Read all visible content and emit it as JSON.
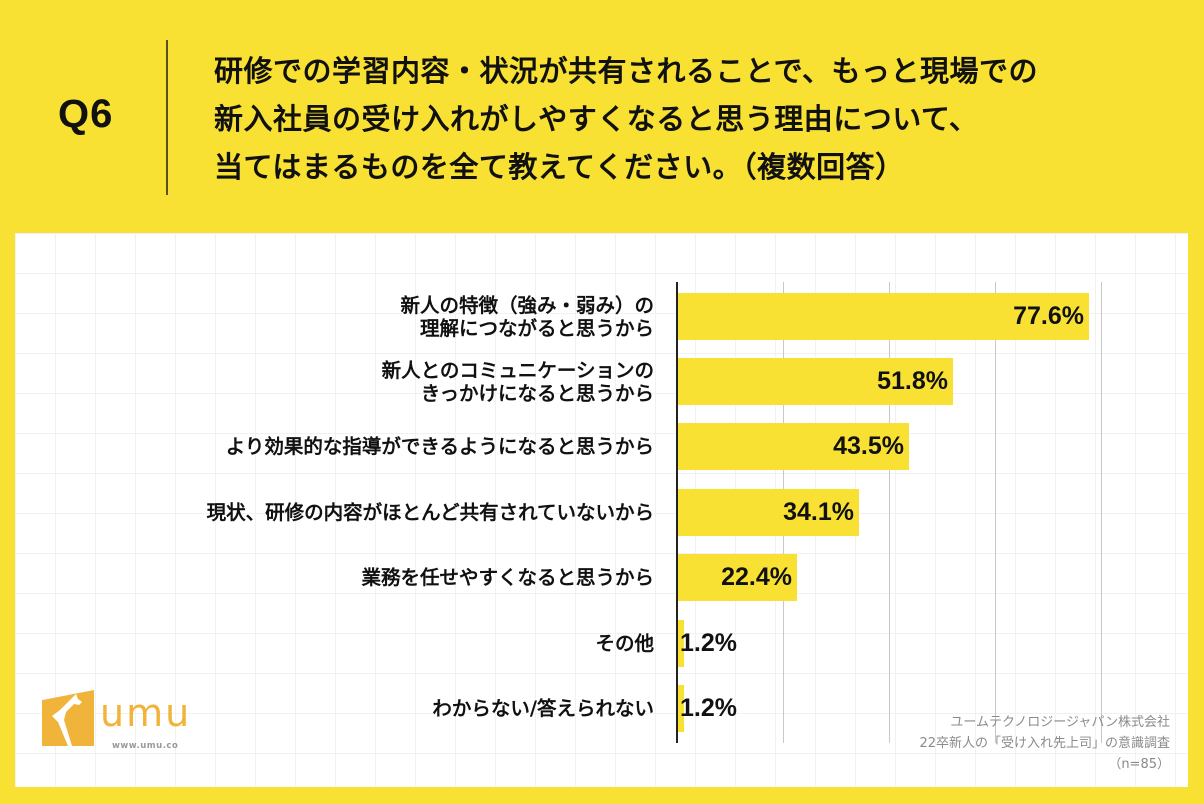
{
  "header": {
    "question_number": "Q6",
    "question_lines": [
      "研修での学習内容・状況が共有されることで、もっと現場での",
      "新入社員の受け入れがしやすくなると思う理由について、",
      "当てはまるものを全て教えてください。（複数回答）"
    ]
  },
  "colors": {
    "background": "#F9E133",
    "bar": "#F9E133",
    "panel": "#FFFFFF",
    "axis": "#222222",
    "gridline": "#C8C8C8",
    "logo": "#F0B43A",
    "credit_text": "#8A8A8A"
  },
  "chart_data": {
    "type": "bar",
    "orientation": "horizontal",
    "title": "研修での学習内容・状況が共有されることで、もっと現場での新入社員の受け入れがしやすくなると思う理由について、当てはまるものを全て教えてください。（複数回答）",
    "categories": [
      "新人の特徴（強み・弱み）の理解につながると思うから",
      "新人とのコミュニケーションのきっかけになると思うから",
      "より効果的な指導ができるようになると思うから",
      "現状、研修の内容がほとんど共有されていないから",
      "業務を任せやすくなると思うから",
      "その他",
      "わからない/答えられない"
    ],
    "category_label_lines": [
      [
        "新人の特徴（強み・弱み）の",
        "理解につながると思うから"
      ],
      [
        "新人とのコミュニケーションの",
        "きっかけになると思うから"
      ],
      [
        "より効果的な指導ができるようになると思うから"
      ],
      [
        "現状、研修の内容がほとんど共有されていないから"
      ],
      [
        "業務を任せやすくなると思うから"
      ],
      [
        "その他"
      ],
      [
        "わからない/答えられない"
      ]
    ],
    "values": [
      77.6,
      51.8,
      43.5,
      34.1,
      22.4,
      1.2,
      1.2
    ],
    "value_labels": [
      "77.6%",
      "51.8%",
      "43.5%",
      "34.1%",
      "22.4%",
      "1.2%",
      "1.2%"
    ],
    "unit": "%",
    "xlabel": "",
    "ylabel": "",
    "xlim": [
      0,
      100
    ],
    "gridlines_at": [
      20,
      40,
      60,
      80
    ],
    "grid": true,
    "legend": null,
    "sample_size": "n=85"
  },
  "logo": {
    "name": "umu",
    "url_text": "www.umu.co"
  },
  "credit": {
    "lines": [
      "ユームテクノロジージャパン株式会社",
      "22卒新人の「受け入れ先上司」の意識調査",
      "（n=85）"
    ]
  }
}
